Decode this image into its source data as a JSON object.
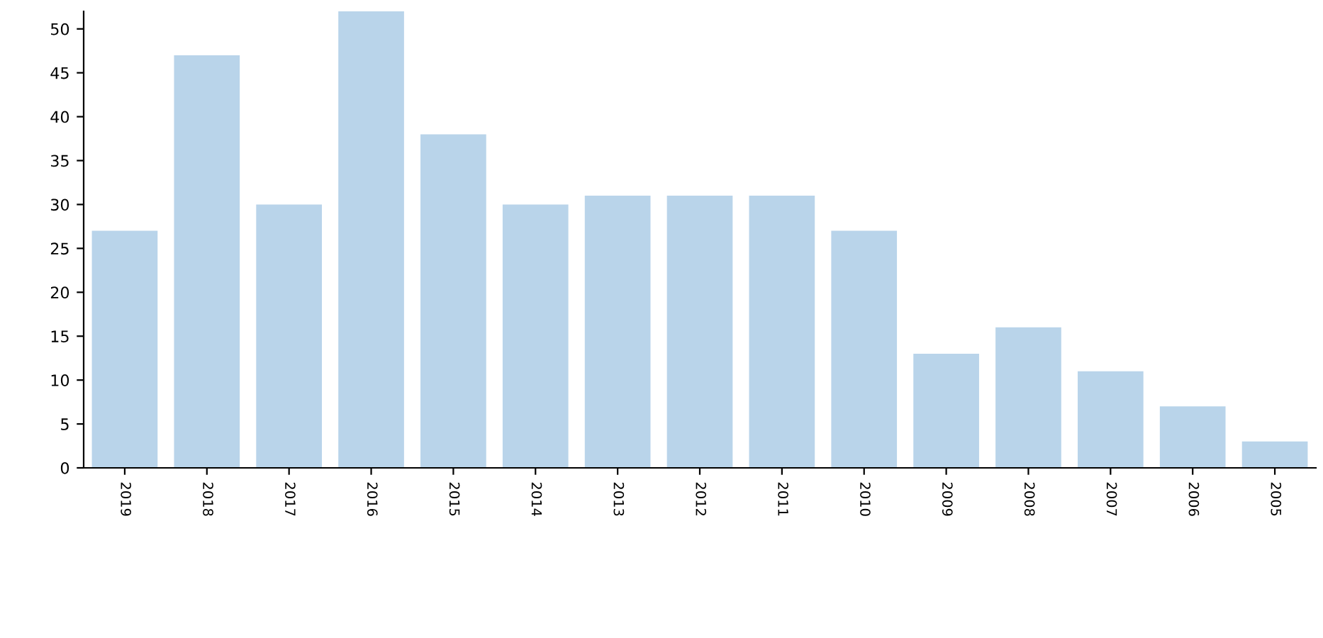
{
  "chart_data": {
    "type": "bar",
    "categories": [
      "2019",
      "2018",
      "2017",
      "2016",
      "2015",
      "2014",
      "2013",
      "2012",
      "2011",
      "2010",
      "2009",
      "2008",
      "2007",
      "2006",
      "2005"
    ],
    "values": [
      27,
      47,
      30,
      52,
      38,
      30,
      31,
      31,
      31,
      27,
      13,
      16,
      11,
      7,
      3
    ],
    "color": "#b9d4ea",
    "ylim": [
      0,
      52
    ],
    "yticks": [
      0,
      5,
      10,
      15,
      20,
      25,
      30,
      35,
      40,
      45,
      50
    ],
    "grid": false,
    "legend": false
  }
}
